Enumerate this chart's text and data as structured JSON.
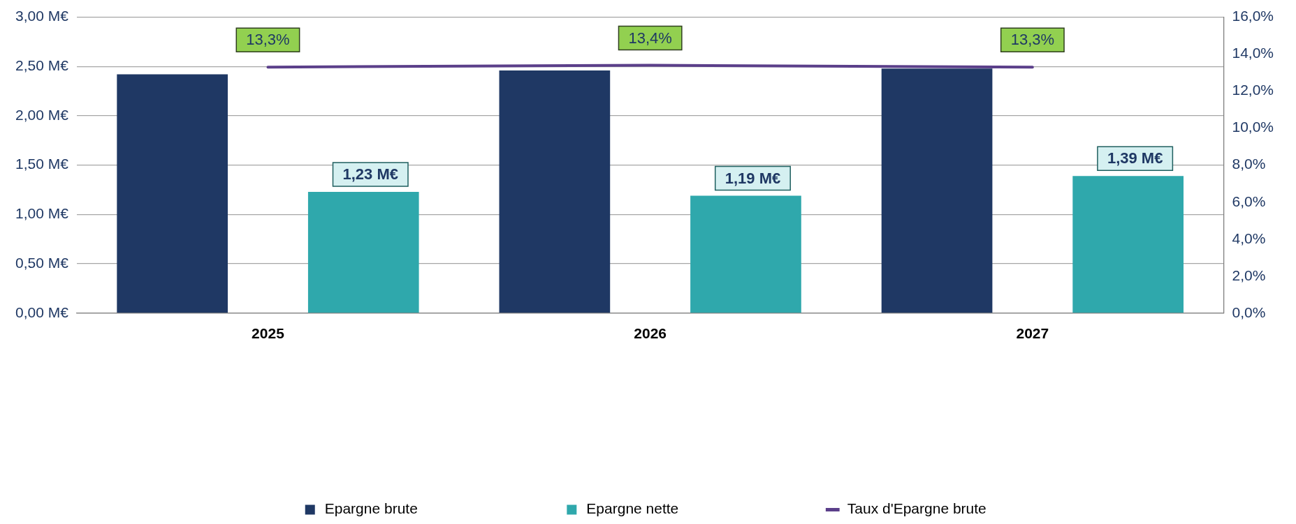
{
  "chart_data": {
    "type": "bar",
    "categories": [
      "2025",
      "2026",
      "2027"
    ],
    "series": [
      {
        "name": "Epargne brute",
        "color": "#1f3864",
        "values": [
          2.42,
          2.46,
          2.48
        ]
      },
      {
        "name": "Epargne nette",
        "color": "#2fa8ac",
        "values": [
          1.23,
          1.19,
          1.39
        ],
        "value_labels": [
          "1,23 M€",
          "1,19 M€",
          "1,39 M€"
        ]
      },
      {
        "name": "Taux d'Epargne brute",
        "type": "line",
        "axis": "y2",
        "color": "#5b3f8a",
        "values": [
          13.3,
          13.4,
          13.3
        ],
        "value_labels": [
          "13,3%",
          "13,4%",
          "13,3%"
        ]
      }
    ],
    "ylim": [
      0,
      3
    ],
    "yticks": [
      {
        "value": 0,
        "label": "0,00 M€"
      },
      {
        "value": 0.5,
        "label": "0,50 M€"
      },
      {
        "value": 1,
        "label": "1,00 M€"
      },
      {
        "value": 1.5,
        "label": "1,50 M€"
      },
      {
        "value": 2,
        "label": "2,00 M€"
      },
      {
        "value": 2.5,
        "label": "2,50 M€"
      },
      {
        "value": 3,
        "label": "3,00 M€"
      }
    ],
    "y2lim": [
      0,
      16
    ],
    "y2ticks": [
      {
        "value": 0,
        "label": "0,0%"
      },
      {
        "value": 2,
        "label": "2,0%"
      },
      {
        "value": 4,
        "label": "4,0%"
      },
      {
        "value": 6,
        "label": "6,0%"
      },
      {
        "value": 8,
        "label": "8,0%"
      },
      {
        "value": 10,
        "label": "10,0%"
      },
      {
        "value": 12,
        "label": "12,0%"
      },
      {
        "value": 14,
        "label": "14,0%"
      },
      {
        "value": 16,
        "label": "16,0%"
      }
    ],
    "grid": "y",
    "legend": "bottom",
    "marker": "none",
    "line_style": "solid"
  }
}
